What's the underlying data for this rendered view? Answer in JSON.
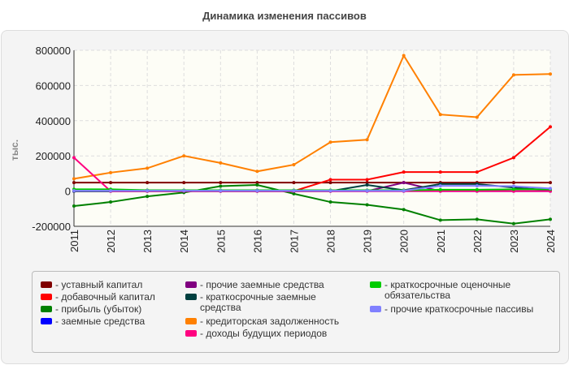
{
  "chart_data": {
    "type": "line",
    "title": "Динамика изменения пассивов",
    "ylabel": "тыс.",
    "xlabel": "",
    "ylim": [
      -200000,
      800000
    ],
    "yticks": [
      "800000",
      "600000",
      "400000",
      "200000",
      "0",
      "-200000"
    ],
    "categories": [
      "2011",
      "2012",
      "2013",
      "2014",
      "2015",
      "2016",
      "2017",
      "2018",
      "2019",
      "2020",
      "2021",
      "2022",
      "2023",
      "2024"
    ],
    "grid": true,
    "legend_position": "bottom",
    "series": [
      {
        "name": "- уставный капитал",
        "color": "#800000",
        "values": [
          48000,
          48000,
          48000,
          48000,
          48000,
          48000,
          48000,
          48000,
          48000,
          48000,
          48000,
          48000,
          48000,
          48000
        ]
      },
      {
        "name": "- добавочный капитал",
        "color": "#ff0000",
        "values": [
          0,
          0,
          0,
          0,
          0,
          0,
          0,
          65000,
          65000,
          108000,
          108000,
          108000,
          190000,
          365000
        ]
      },
      {
        "name": "- прибыль (убыток)",
        "color": "#008000",
        "values": [
          -85000,
          -62000,
          -30000,
          -8000,
          28000,
          35000,
          -15000,
          -62000,
          -78000,
          -105000,
          -165000,
          -160000,
          -185000,
          -160000
        ]
      },
      {
        "name": "- заемные средства",
        "color": "#0000ff",
        "values": [
          0,
          0,
          0,
          0,
          0,
          0,
          0,
          0,
          0,
          0,
          0,
          0,
          0,
          0
        ]
      },
      {
        "name": "- прочие заемные средства",
        "color": "#800080",
        "values": [
          0,
          0,
          0,
          0,
          0,
          0,
          0,
          0,
          0,
          48000,
          0,
          0,
          0,
          0
        ]
      },
      {
        "name": "- краткосрочные заемные средства",
        "color": "#004040",
        "values": [
          0,
          0,
          0,
          0,
          0,
          0,
          0,
          0,
          35000,
          5000,
          40000,
          40000,
          20000,
          5000
        ]
      },
      {
        "name": "- кредиторская задолженность",
        "color": "#ff8000",
        "values": [
          70000,
          105000,
          130000,
          200000,
          160000,
          112000,
          150000,
          278000,
          292000,
          770000,
          435000,
          420000,
          660000,
          665000
        ]
      },
      {
        "name": "- доходы будущих периодов",
        "color": "#ff0080",
        "values": [
          190000,
          0,
          0,
          0,
          0,
          0,
          0,
          0,
          0,
          0,
          0,
          0,
          0,
          0
        ]
      },
      {
        "name": "- краткосрочные оценочные обязательства",
        "color": "#00cc00",
        "values": [
          10000,
          10000,
          5000,
          5000,
          5000,
          5000,
          5000,
          5000,
          5000,
          5000,
          8000,
          8000,
          10000,
          10000
        ]
      },
      {
        "name": "- прочие краткосрочные пассивы",
        "color": "#8080ff",
        "values": [
          2000,
          2000,
          2000,
          2000,
          2000,
          2000,
          2000,
          2000,
          2000,
          2000,
          30000,
          30000,
          28000,
          15000
        ]
      }
    ]
  }
}
